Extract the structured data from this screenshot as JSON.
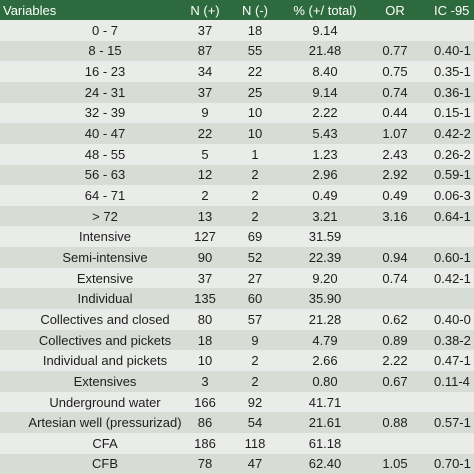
{
  "table": {
    "header": [
      "Variables",
      "N (+)",
      "N (-)",
      "% (+/ total)",
      "OR",
      "IC -95"
    ],
    "rows": [
      [
        "0 - 7",
        "37",
        "18",
        "9.14"
      ],
      [
        "8 - 15",
        "87",
        "55",
        "21.48",
        "0.77",
        "0.40-1"
      ],
      [
        "16 - 23",
        "34",
        "22",
        "8.40",
        "0.75",
        "0.35-1"
      ],
      [
        "24 - 31",
        "37",
        "25",
        "9.14",
        "0.74",
        "0.36-1"
      ],
      [
        "32 - 39",
        "9",
        "10",
        "2.22",
        "0.44",
        "0.15-1"
      ],
      [
        "40 - 47",
        "22",
        "10",
        "5.43",
        "1.07",
        "0.42-2"
      ],
      [
        "48 - 55",
        "5",
        "1",
        "1.23",
        "2.43",
        "0.26-2"
      ],
      [
        "56 - 63",
        "12",
        "2",
        "2.96",
        "2.92",
        "0.59-1"
      ],
      [
        "64 - 71",
        "2",
        "2",
        "0.49",
        "0.49",
        "0.06-3"
      ],
      [
        "> 72",
        "13",
        "2",
        "3.21",
        "3.16",
        "0.64-1"
      ],
      [
        "Intensive",
        "127",
        "69",
        "31.59"
      ],
      [
        "Semi-intensive",
        "90",
        "52",
        "22.39",
        "0.94",
        "0.60-1"
      ],
      [
        "Extensive",
        "37",
        "27",
        "9.20",
        "0.74",
        "0.42-1"
      ],
      [
        "Individual",
        "135",
        "60",
        "35.90"
      ],
      [
        "Collectives and closed",
        "80",
        "57",
        "21.28",
        "0.62",
        "0.40-0"
      ],
      [
        "Collectives and pickets",
        "18",
        "9",
        "4.79",
        "0.89",
        "0.38-2"
      ],
      [
        "Individual and pickets",
        "10",
        "2",
        "2.66",
        "2.22",
        "0.47-1"
      ],
      [
        "Extensives",
        "3",
        "2",
        "0.80",
        "0.67",
        "0.11-4"
      ],
      [
        "Underground water",
        "166",
        "92",
        "41.71"
      ],
      [
        "Artesian well (pressurizad)",
        "86",
        "54",
        "21.61",
        "0.88",
        "0.57-1"
      ],
      [
        "CFA",
        "186",
        "118",
        "61.18"
      ],
      [
        "CFB",
        "78",
        "47",
        "62.40",
        "1.05",
        "0.70-1"
      ]
    ]
  }
}
